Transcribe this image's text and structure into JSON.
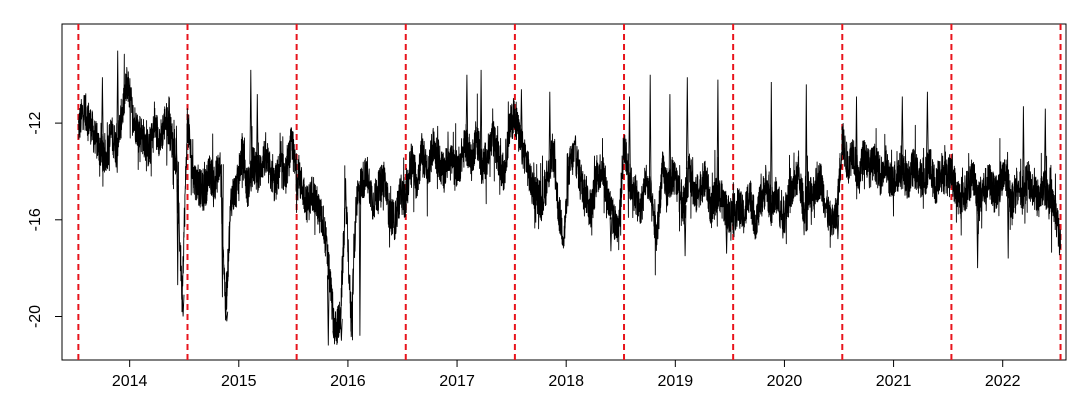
{
  "chart_data": {
    "type": "line",
    "title": "",
    "xlabel": "",
    "ylabel": "",
    "xlim": [
      2013.35,
      2022.55
    ],
    "ylim": [
      -21.8,
      -7.9
    ],
    "y_ticks": [
      -12,
      -16,
      -20
    ],
    "y_tick_labels": [
      "-12",
      "-16",
      "-20"
    ],
    "x_ticks": [
      2014,
      2015,
      2016,
      2017,
      2018,
      2019,
      2020,
      2021,
      2022
    ],
    "x_tick_labels": [
      "2014",
      "2015",
      "2016",
      "2017",
      "2018",
      "2019",
      "2020",
      "2021",
      "2022"
    ],
    "x_tick_positions": [
      2013.97,
      2014.97,
      2015.97,
      2016.97,
      2017.97,
      2018.97,
      2019.97,
      2020.97,
      2021.97
    ],
    "grid": false,
    "vlines": {
      "color": "#e8141c",
      "style": "dashed",
      "x": [
        2013.5,
        2014.5,
        2015.5,
        2016.5,
        2017.5,
        2018.5,
        2019.5,
        2020.5,
        2021.5,
        2022.5
      ]
    },
    "series": [
      {
        "color": "#000000",
        "x": [
          2013.5,
          2013.55,
          2013.6,
          2013.65,
          2013.7,
          2013.75,
          2013.8,
          2013.85,
          2013.9,
          2013.95,
          2014.0,
          2014.05,
          2014.1,
          2014.15,
          2014.2,
          2014.25,
          2014.3,
          2014.35,
          2014.4,
          2014.45,
          2014.5,
          2014.55,
          2014.6,
          2014.65,
          2014.7,
          2014.75,
          2014.8,
          2014.85,
          2014.9,
          2014.95,
          2015.0,
          2015.05,
          2015.1,
          2015.15,
          2015.2,
          2015.25,
          2015.3,
          2015.35,
          2015.4,
          2015.45,
          2015.5,
          2015.55,
          2015.6,
          2015.65,
          2015.7,
          2015.75,
          2015.8,
          2015.85,
          2015.9,
          2015.95,
          2016.0,
          2016.05,
          2016.1,
          2016.15,
          2016.2,
          2016.25,
          2016.3,
          2016.35,
          2016.4,
          2016.45,
          2016.5,
          2016.55,
          2016.6,
          2016.65,
          2016.7,
          2016.75,
          2016.8,
          2016.85,
          2016.9,
          2016.95,
          2017.0,
          2017.05,
          2017.1,
          2017.15,
          2017.2,
          2017.25,
          2017.3,
          2017.35,
          2017.4,
          2017.45,
          2017.5,
          2017.55,
          2017.6,
          2017.65,
          2017.7,
          2017.75,
          2017.8,
          2017.85,
          2017.9,
          2017.95,
          2018.0,
          2018.05,
          2018.1,
          2018.15,
          2018.2,
          2018.25,
          2018.3,
          2018.35,
          2018.4,
          2018.45,
          2018.5,
          2018.55,
          2018.6,
          2018.65,
          2018.7,
          2018.75,
          2018.8,
          2018.85,
          2018.9,
          2018.95,
          2019.0,
          2019.05,
          2019.1,
          2019.15,
          2019.2,
          2019.25,
          2019.3,
          2019.35,
          2019.4,
          2019.45,
          2019.5,
          2019.55,
          2019.6,
          2019.65,
          2019.7,
          2019.75,
          2019.8,
          2019.85,
          2019.9,
          2019.95,
          2020.0,
          2020.05,
          2020.1,
          2020.15,
          2020.2,
          2020.25,
          2020.3,
          2020.35,
          2020.4,
          2020.45,
          2020.5,
          2020.55,
          2020.6,
          2020.65,
          2020.7,
          2020.75,
          2020.8,
          2020.85,
          2020.9,
          2020.95,
          2021.0,
          2021.05,
          2021.1,
          2021.15,
          2021.2,
          2021.25,
          2021.3,
          2021.35,
          2021.4,
          2021.45,
          2021.5,
          2021.55,
          2021.6,
          2021.65,
          2021.7,
          2021.75,
          2021.8,
          2021.85,
          2021.9,
          2021.95,
          2022.0,
          2022.05,
          2022.1,
          2022.15,
          2022.2,
          2022.25,
          2022.3,
          2022.35,
          2022.4,
          2022.45,
          2022.5
        ],
        "y": [
          -12.2,
          -11.4,
          -11.9,
          -12.6,
          -13.1,
          -13.5,
          -12.4,
          -13.0,
          -11.6,
          -10.2,
          -11.8,
          -12.3,
          -12.6,
          -13.2,
          -12.1,
          -12.7,
          -11.8,
          -12.5,
          -13.6,
          -19.1,
          -11.9,
          -14.2,
          -14.6,
          -14.9,
          -14.1,
          -14.4,
          -13.7,
          -19.8,
          -15.1,
          -14.7,
          -13.2,
          -14.8,
          -13.7,
          -14.2,
          -13.4,
          -13.9,
          -14.6,
          -13.8,
          -14.2,
          -12.9,
          -14.1,
          -14.6,
          -15.4,
          -14.8,
          -15.6,
          -16.2,
          -18.3,
          -20.6,
          -20.1,
          -14.9,
          -20.3,
          -15.1,
          -14.4,
          -14.1,
          -15.3,
          -14.8,
          -14.2,
          -15.7,
          -16.1,
          -14.9,
          -15.2,
          -13.4,
          -14.5,
          -13.1,
          -14.2,
          -12.9,
          -13.5,
          -14.1,
          -13.2,
          -14.0,
          -13.6,
          -12.8,
          -13.7,
          -12.4,
          -13.9,
          -13.3,
          -12.6,
          -13.5,
          -14.1,
          -12.2,
          -11.6,
          -12.9,
          -13.4,
          -14.6,
          -14.9,
          -15.3,
          -14.3,
          -13.1,
          -15.6,
          -16.7,
          -13.8,
          -13.2,
          -14.3,
          -14.9,
          -15.6,
          -14.2,
          -13.8,
          -15.1,
          -15.9,
          -16.6,
          -12.8,
          -14.4,
          -14.9,
          -15.7,
          -14.3,
          -15.2,
          -16.8,
          -13.9,
          -14.7,
          -14.1,
          -14.8,
          -15.4,
          -13.9,
          -15.1,
          -14.6,
          -14.3,
          -15.6,
          -14.9,
          -15.2,
          -15.7,
          -15.8,
          -15.4,
          -15.9,
          -14.8,
          -16.1,
          -15.3,
          -14.6,
          -15.5,
          -14.9,
          -16.0,
          -15.2,
          -14.7,
          -14.1,
          -15.6,
          -15.1,
          -14.7,
          -14.3,
          -15.4,
          -16.2,
          -15.8,
          -12.6,
          -13.8,
          -13.1,
          -14.4,
          -13.2,
          -13.9,
          -13.6,
          -14.2,
          -13.7,
          -14.6,
          -14.1,
          -13.9,
          -14.5,
          -13.8,
          -14.2,
          -14.4,
          -13.6,
          -14.8,
          -13.9,
          -14.3,
          -14.0,
          -14.9,
          -15.3,
          -14.6,
          -14.2,
          -15.1,
          -14.7,
          -14.4,
          -15.0,
          -14.6,
          -14.1,
          -15.2,
          -14.5,
          -14.9,
          -14.3,
          -14.8,
          -15.2,
          -14.6,
          -15.3,
          -15.6,
          -17.2
        ],
        "spikes": [
          {
            "x": 2013.86,
            "y": -9.0
          },
          {
            "x": 2013.72,
            "y": -10.1
          },
          {
            "x": 2014.33,
            "y": -10.9
          },
          {
            "x": 2014.41,
            "y": -18.7
          },
          {
            "x": 2014.46,
            "y": -20.0
          },
          {
            "x": 2014.82,
            "y": -19.2
          },
          {
            "x": 2014.86,
            "y": -20.2
          },
          {
            "x": 2015.08,
            "y": -9.8
          },
          {
            "x": 2015.14,
            "y": -10.8
          },
          {
            "x": 2015.79,
            "y": -21.2
          },
          {
            "x": 2015.84,
            "y": -20.9
          },
          {
            "x": 2015.91,
            "y": -21.0
          },
          {
            "x": 2016.08,
            "y": -20.8
          },
          {
            "x": 2016.11,
            "y": -15.1
          },
          {
            "x": 2017.06,
            "y": -10.0
          },
          {
            "x": 2017.19,
            "y": -9.8
          },
          {
            "x": 2017.56,
            "y": -10.6
          },
          {
            "x": 2017.82,
            "y": -10.7
          },
          {
            "x": 2018.38,
            "y": -17.3
          },
          {
            "x": 2018.55,
            "y": -10.9
          },
          {
            "x": 2018.74,
            "y": -10.0
          },
          {
            "x": 2018.92,
            "y": -10.8
          },
          {
            "x": 2019.06,
            "y": -17.5
          },
          {
            "x": 2019.08,
            "y": -10.1
          },
          {
            "x": 2019.36,
            "y": -10.2
          },
          {
            "x": 2019.44,
            "y": -17.4
          },
          {
            "x": 2019.85,
            "y": -10.3
          },
          {
            "x": 2020.17,
            "y": -10.4
          },
          {
            "x": 2020.46,
            "y": -16.8
          },
          {
            "x": 2020.63,
            "y": -10.9
          },
          {
            "x": 2021.05,
            "y": -10.9
          },
          {
            "x": 2021.28,
            "y": -10.7
          },
          {
            "x": 2021.74,
            "y": -18.0
          },
          {
            "x": 2022.02,
            "y": -17.6
          },
          {
            "x": 2022.16,
            "y": -11.3
          },
          {
            "x": 2022.36,
            "y": -11.4
          }
        ]
      }
    ]
  }
}
